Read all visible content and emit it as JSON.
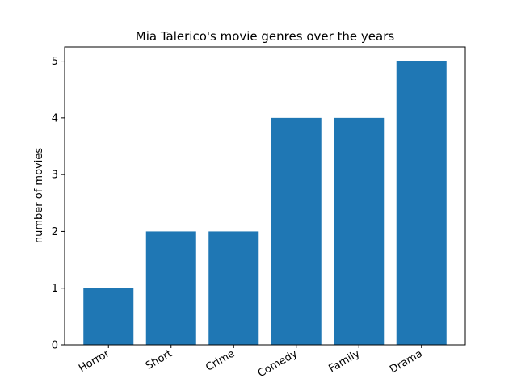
{
  "chart_data": {
    "type": "bar",
    "title": "Mia Talerico's movie genres over the years",
    "xlabel": "",
    "ylabel": "number of movies",
    "categories": [
      "Horror",
      "Short",
      "Crime",
      "Comedy",
      "Family",
      "Drama"
    ],
    "values": [
      1,
      2,
      2,
      4,
      4,
      5
    ],
    "ylim": [
      0,
      5.25
    ],
    "yticks": [
      0,
      1,
      2,
      3,
      4,
      5
    ],
    "bar_color": "#1f77b4",
    "grid": false,
    "legend": "none"
  }
}
